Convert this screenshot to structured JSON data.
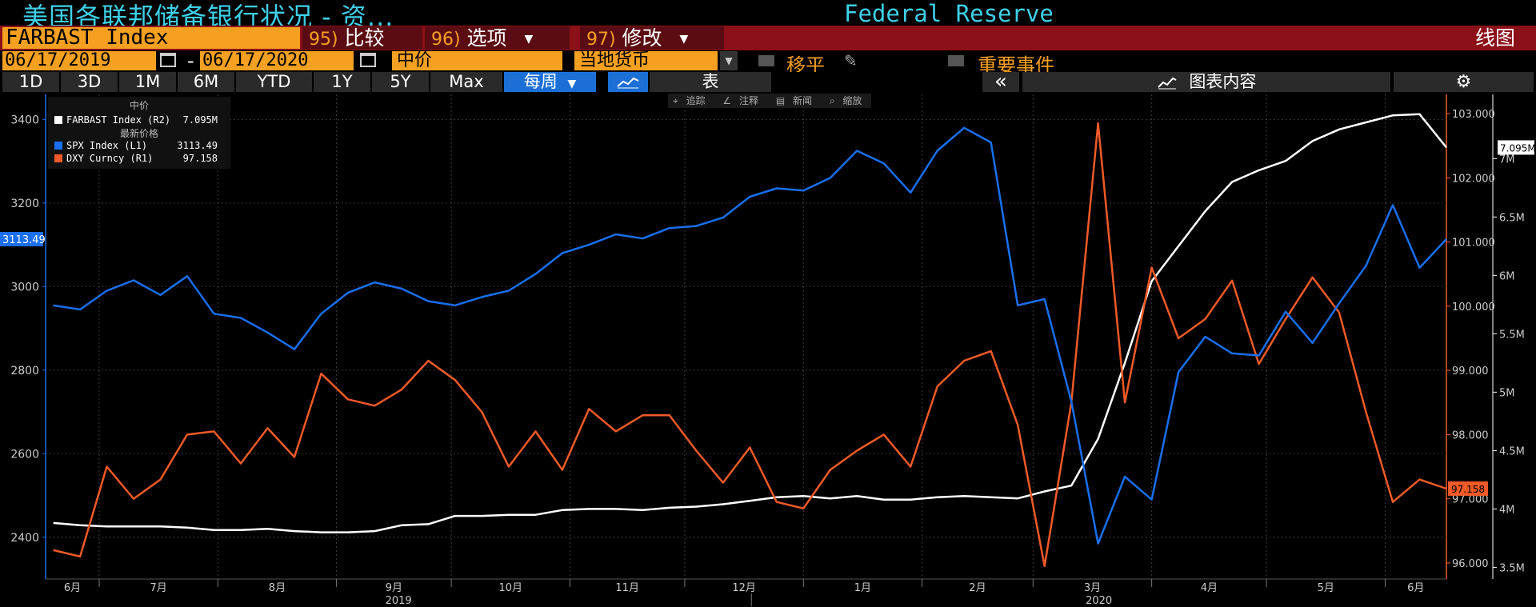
{
  "header": {
    "title": "美国各联邦储备银行状况 - 资...",
    "subtitle": "Federal Reserve"
  },
  "toolbar": {
    "ticker": "FARBAST Index",
    "compare_num": "95)",
    "compare_label": "比较",
    "options_num": "96)",
    "options_label": "选项",
    "edit_num": "97)",
    "edit_label": "修改",
    "view_label": "线图"
  },
  "range": {
    "start": "06/17/2019",
    "dash": "-",
    "end": "06/17/2020",
    "price_type": "中价",
    "currency": "当地货币",
    "moving_avg": "移平",
    "key_events": "重要事件"
  },
  "periods": {
    "items": [
      "1D",
      "3D",
      "1M",
      "6M",
      "YTD",
      "1Y",
      "5Y",
      "Max"
    ],
    "frequency": "每周",
    "table_label": "表",
    "collapse": "«",
    "chart_content": "图表内容"
  },
  "mini_toolbar": {
    "track": "追踪",
    "annotate": "注释",
    "news": "新闻",
    "zoom": "缩放"
  },
  "legend": {
    "header_mid": "中价",
    "header_last": "最新价格",
    "items": [
      {
        "name": "FARBAST Index  (R2)",
        "value": "7.095M"
      },
      {
        "name": "SPX Index  (L1)",
        "value": "3113.49"
      },
      {
        "name": "DXY Curncy  (R1)",
        "value": "97.158"
      }
    ]
  },
  "colors": {
    "spx": "#1a6ff0",
    "dxy": "#f05a28",
    "farbast": "#ffffff",
    "accent_orange": "#f5a020",
    "header_red": "#8b1018"
  },
  "chart_data": {
    "type": "line",
    "x": [
      "2019-06-19",
      "2019-06-26",
      "2019-07-03",
      "2019-07-10",
      "2019-07-17",
      "2019-07-24",
      "2019-07-31",
      "2019-08-07",
      "2019-08-14",
      "2019-08-21",
      "2019-08-28",
      "2019-09-04",
      "2019-09-11",
      "2019-09-18",
      "2019-09-25",
      "2019-10-02",
      "2019-10-09",
      "2019-10-16",
      "2019-10-23",
      "2019-10-30",
      "2019-11-06",
      "2019-11-13",
      "2019-11-20",
      "2019-11-27",
      "2019-12-04",
      "2019-12-11",
      "2019-12-18",
      "2019-12-25",
      "2020-01-01",
      "2020-01-08",
      "2020-01-15",
      "2020-01-22",
      "2020-01-29",
      "2020-02-05",
      "2020-02-12",
      "2020-02-19",
      "2020-02-26",
      "2020-03-04",
      "2020-03-11",
      "2020-03-18",
      "2020-03-25",
      "2020-04-01",
      "2020-04-08",
      "2020-04-15",
      "2020-04-22",
      "2020-04-29",
      "2020-05-06",
      "2020-05-13",
      "2020-05-20",
      "2020-05-27",
      "2020-06-03",
      "2020-06-10",
      "2020-06-17"
    ],
    "series": [
      {
        "name": "SPX Index  (L1)",
        "axis": "L1",
        "values": [
          2955,
          2945,
          2990,
          3015,
          2980,
          3025,
          2935,
          2925,
          2890,
          2850,
          2935,
          2985,
          3010,
          2995,
          2965,
          2955,
          2975,
          2990,
          3030,
          3080,
          3100,
          3125,
          3115,
          3140,
          3145,
          3165,
          3215,
          3235,
          3230,
          3260,
          3325,
          3295,
          3225,
          3325,
          3380,
          3345,
          2955,
          2970,
          2725,
          2385,
          2545,
          2490,
          2795,
          2880,
          2840,
          2835,
          2940,
          2865,
          2960,
          3050,
          3195,
          3045,
          3113.49
        ]
      },
      {
        "name": "DXY Curncy  (R1)",
        "axis": "R1",
        "values": [
          96.2,
          96.1,
          97.5,
          97.0,
          97.3,
          98.0,
          98.05,
          97.55,
          98.1,
          97.65,
          98.95,
          98.55,
          98.45,
          98.7,
          99.15,
          98.85,
          98.35,
          97.5,
          98.05,
          97.45,
          98.4,
          98.05,
          98.3,
          98.3,
          97.75,
          97.25,
          97.8,
          96.95,
          96.85,
          97.45,
          97.75,
          98.0,
          97.5,
          98.75,
          99.15,
          99.3,
          98.15,
          95.95,
          98.5,
          102.85,
          98.5,
          100.6,
          99.5,
          99.8,
          100.4,
          99.1,
          99.8,
          100.45,
          99.9,
          98.35,
          96.95,
          97.3,
          97.158
        ]
      },
      {
        "name": "FARBAST Index  (R2)",
        "axis": "R2",
        "values": [
          3.88,
          3.86,
          3.85,
          3.85,
          3.85,
          3.84,
          3.82,
          3.82,
          3.83,
          3.81,
          3.8,
          3.8,
          3.81,
          3.86,
          3.87,
          3.94,
          3.94,
          3.95,
          3.95,
          3.99,
          4.0,
          4.0,
          3.99,
          4.01,
          4.02,
          4.04,
          4.07,
          4.1,
          4.11,
          4.09,
          4.11,
          4.08,
          4.08,
          4.1,
          4.11,
          4.1,
          4.09,
          4.15,
          4.2,
          4.6,
          5.25,
          5.95,
          6.25,
          6.55,
          6.8,
          6.9,
          6.98,
          7.15,
          7.25,
          7.31,
          7.37,
          7.38,
          7.095
        ]
      }
    ],
    "y_left": {
      "label": "",
      "ticks": [
        2400,
        2600,
        2800,
        3000,
        3200,
        3400
      ],
      "range": [
        2300,
        3460
      ],
      "current": "3113.49"
    },
    "y_right1": {
      "ticks": [
        "96.000",
        "97.000",
        "98.000",
        "99.000",
        "100.000",
        "101.000",
        "102.000",
        "103.000"
      ],
      "range": [
        95.75,
        103.3
      ],
      "current": "97.158"
    },
    "y_right2": {
      "ticks": [
        "3.5M",
        "4M",
        "4.5M",
        "5M",
        "5.5M",
        "6M",
        "6.5M",
        "7M"
      ],
      "range": [
        3.4,
        7.55
      ],
      "current": "7.095M"
    },
    "x_month_labels": [
      "6月",
      "7月",
      "8月",
      "9月",
      "10月",
      "11月",
      "12月",
      "1月",
      "2月",
      "3月",
      "4月",
      "5月",
      "6月"
    ],
    "x_year_labels": [
      "2019",
      "2020"
    ],
    "grid": true
  }
}
